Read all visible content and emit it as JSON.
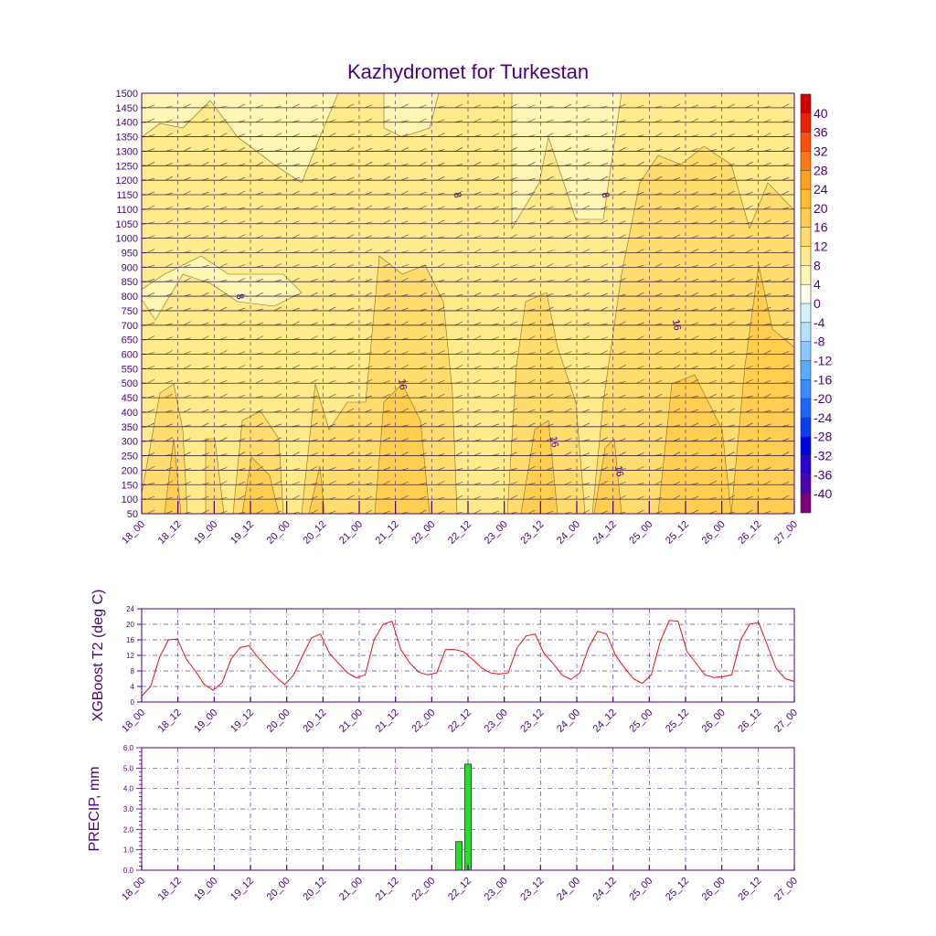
{
  "title": "Kazhydromet for Turkestan",
  "colors": {
    "frame": "#4b0082",
    "temp_line": "#e8101a",
    "precip_bar": "#22e02a",
    "grid": "#6a3d9a"
  },
  "time_labels": [
    "18_00",
    "18_12",
    "19_00",
    "19_12",
    "20_00",
    "20_12",
    "21_00",
    "21_12",
    "22_00",
    "22_12",
    "23_00",
    "23_12",
    "24_00",
    "24_12",
    "25_00",
    "25_12",
    "26_00",
    "26_12",
    "27_00"
  ],
  "chart_data": [
    {
      "type": "heatmap",
      "name": "time-height cross-section",
      "y_ticks": [
        50,
        100,
        150,
        200,
        250,
        300,
        350,
        400,
        450,
        500,
        550,
        600,
        650,
        700,
        750,
        800,
        850,
        900,
        950,
        1000,
        1050,
        1100,
        1150,
        1200,
        1250,
        1300,
        1350,
        1400,
        1450,
        1500
      ],
      "ylim": [
        50,
        1500
      ],
      "colorbar": {
        "labels": [
          40,
          36,
          32,
          28,
          24,
          20,
          16,
          12,
          8,
          4,
          0,
          -4,
          -8,
          -12,
          -16,
          -20,
          -24,
          -28,
          -32,
          -36,
          -40
        ],
        "colors": [
          "#7a007a",
          "#4b00b4",
          "#2c00d2",
          "#0000e6",
          "#0a3cf0",
          "#1e64ff",
          "#3c8cff",
          "#5aaaff",
          "#8cc8ff",
          "#b4e1ff",
          "#d7f0ff",
          "#fffff0",
          "#fff5b4",
          "#ffeb8c",
          "#ffdc6e",
          "#ffcd50",
          "#ffbe32",
          "#ffa01e",
          "#ff7814",
          "#ff500a",
          "#f01e00",
          "#d20000"
        ]
      },
      "contour_labels": [
        "8",
        "8",
        "8",
        "16",
        "16",
        "16",
        "16"
      ]
    },
    {
      "type": "line",
      "ylabel": "XGBoost T2 (deg C)",
      "ylim": [
        0,
        24
      ],
      "y_ticks": [
        0,
        4,
        8,
        12,
        16,
        20,
        24
      ],
      "values": [
        1.5,
        4,
        11.5,
        16,
        16.2,
        11,
        8,
        4.5,
        3,
        5,
        11,
        14,
        14.5,
        11.5,
        9,
        6.5,
        4.5,
        7,
        12,
        16.5,
        17.5,
        12.5,
        10,
        7.5,
        6.2,
        7,
        16,
        20,
        20.8,
        13.5,
        10,
        7.7,
        7,
        7.5,
        13.5,
        13.5,
        13,
        11,
        8.8,
        7.5,
        7.2,
        7.5,
        14,
        17,
        17.5,
        12.5,
        10,
        7,
        5.8,
        7.5,
        14,
        18.2,
        17.5,
        12,
        8.8,
        6,
        4.8,
        7,
        15.5,
        21,
        20.8,
        13,
        10,
        7,
        6.3,
        6.5,
        7,
        16,
        20,
        20.5,
        14.5,
        8.5,
        6,
        5.3
      ]
    },
    {
      "type": "bar",
      "ylabel": "PRECIP, mm",
      "ylim": [
        0,
        6
      ],
      "y_ticks": [
        "0.0",
        "1.0",
        "2.0",
        "3.0",
        "4.0",
        "5.0",
        "6.0"
      ],
      "bars": [
        {
          "time": "22_09",
          "value": 1.4
        },
        {
          "time": "22_12",
          "value": 5.2
        }
      ]
    }
  ]
}
